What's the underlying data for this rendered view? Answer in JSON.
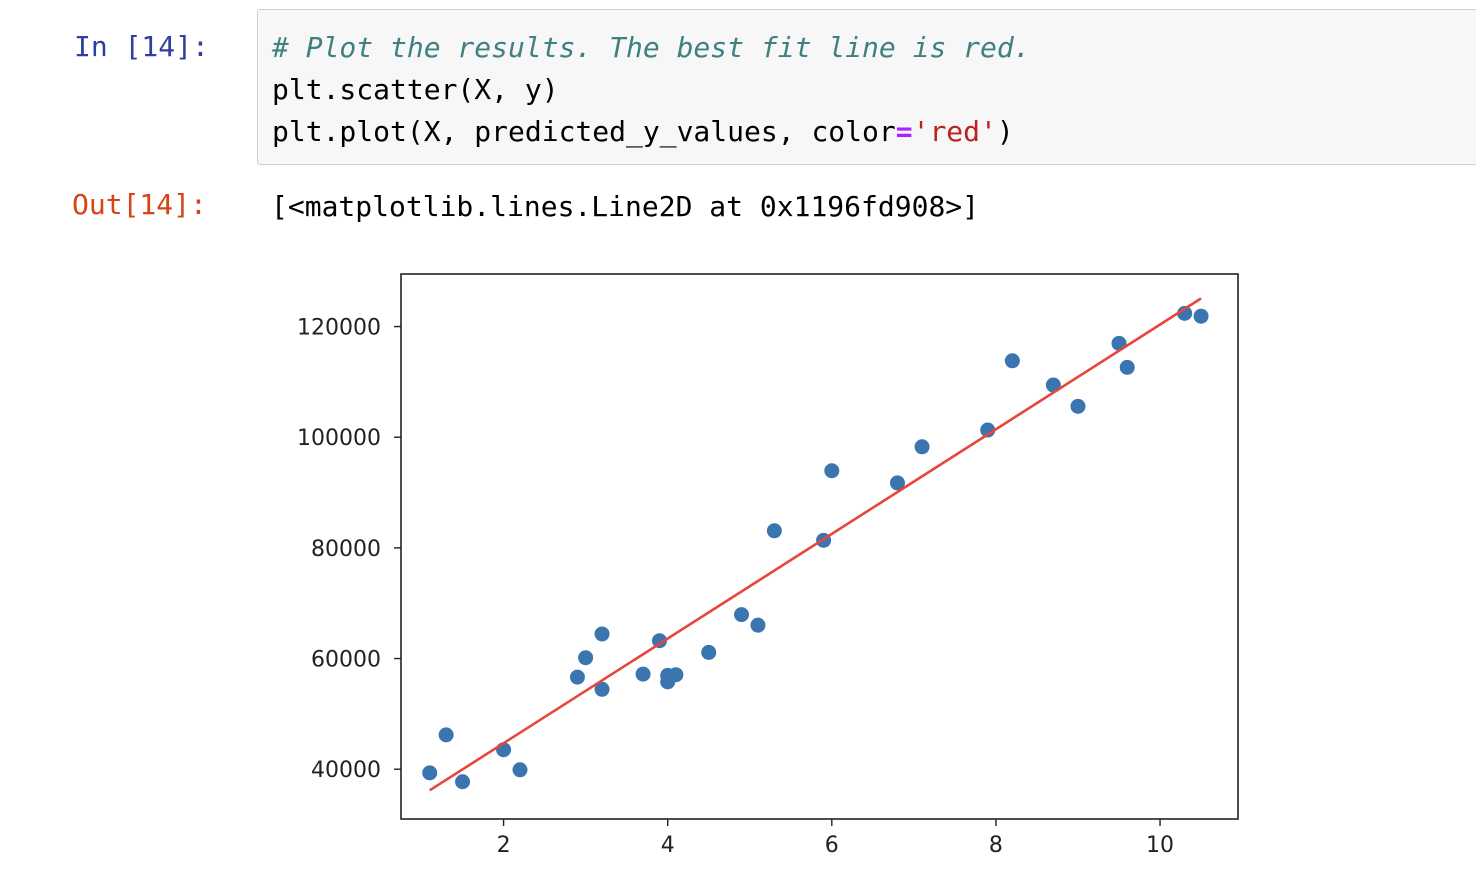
{
  "cell": {
    "input_prompt": "In [14]:",
    "output_prompt": "Out[14]:",
    "code": {
      "line1": "# Plot the results. The best fit line is red.",
      "line2": "plt.scatter(X, y)",
      "line3_a": "plt.plot(X, predicted_y_values, color",
      "line3_op": "=",
      "line3_str": "'red'",
      "line3_b": ")"
    },
    "output_text": "[<matplotlib.lines.Line2D at 0x1196fd908>]"
  },
  "chart_data": {
    "type": "scatter",
    "title": "",
    "xlabel": "",
    "ylabel": "",
    "xlim": [
      0.75,
      10.95
    ],
    "ylim": [
      31000,
      129500
    ],
    "xticks": [
      2,
      4,
      6,
      8,
      10
    ],
    "yticks": [
      40000,
      60000,
      80000,
      100000,
      120000
    ],
    "grid": false,
    "legend": "none",
    "point_color": "#3b75af",
    "line_color": "#e8453c",
    "series": [
      {
        "type": "scatter",
        "x": [
          1.1,
          1.3,
          1.5,
          2.0,
          2.2,
          2.9,
          3.0,
          3.2,
          3.2,
          3.7,
          3.9,
          4.0,
          4.0,
          4.1,
          4.5,
          4.9,
          5.1,
          5.3,
          5.9,
          6.0,
          6.8,
          7.1,
          7.9,
          8.2,
          8.7,
          9.0,
          9.5,
          9.6,
          10.3,
          10.5
        ],
        "y": [
          39343,
          46205,
          37731,
          43525,
          39891,
          56642,
          60150,
          54445,
          64445,
          57189,
          63218,
          55794,
          56957,
          57081,
          61111,
          67938,
          66029,
          83088,
          81363,
          93940,
          91738,
          98273,
          101302,
          113812,
          109431,
          105582,
          116969,
          112635,
          122391,
          121872
        ]
      },
      {
        "type": "line",
        "x": [
          1.1,
          10.5
        ],
        "y": [
          36185,
          125089
        ]
      }
    ]
  }
}
